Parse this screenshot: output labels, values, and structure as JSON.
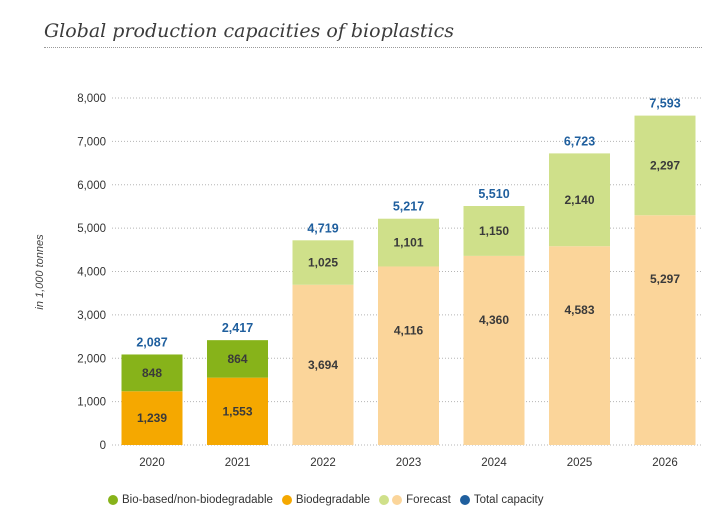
{
  "title": "Global production capacities of bioplastics",
  "chart_data": {
    "type": "bar",
    "stacked": true,
    "categories": [
      "2020",
      "2021",
      "2022",
      "2023",
      "2024",
      "2025",
      "2026"
    ],
    "series": [
      {
        "name": "Biodegradable",
        "values": [
          1239,
          1553,
          null,
          null,
          null,
          null,
          null
        ],
        "color": "#f5a800"
      },
      {
        "name": "Bio-based/non-biodegradable",
        "values": [
          848,
          864,
          null,
          null,
          null,
          null,
          null
        ],
        "color": "#87b31a"
      },
      {
        "name": "Forecast (biodegradable)",
        "values": [
          null,
          null,
          3694,
          4116,
          4360,
          4583,
          5297
        ],
        "color": "#fbd59a"
      },
      {
        "name": "Forecast (bio-based/non-biodegradable)",
        "values": [
          null,
          null,
          1025,
          1101,
          1150,
          2140,
          2297
        ],
        "color": "#cfe08a"
      }
    ],
    "value_labels": {
      "bottom": [
        "1,239",
        "1,553",
        "3,694",
        "4,116",
        "4,360",
        "4,583",
        "5,297"
      ],
      "top": [
        "848",
        "864",
        "1,025",
        "1,101",
        "1,150",
        "2,140",
        "2,297"
      ]
    },
    "totals": [
      2087,
      2417,
      4719,
      5217,
      5510,
      6723,
      7593
    ],
    "total_labels": [
      "2,087",
      "2,417",
      "4,719",
      "5,217",
      "5,510",
      "6,723",
      "7,593"
    ],
    "ylabel": "in 1,000 tonnes",
    "ylim": [
      0,
      8000
    ],
    "yticks": [
      0,
      1000,
      2000,
      3000,
      4000,
      5000,
      6000,
      7000,
      8000
    ],
    "ytick_labels": [
      "0",
      "1,000",
      "2,000",
      "3,000",
      "4,000",
      "5,000",
      "6,000",
      "7,000",
      "8,000"
    ],
    "grid": true,
    "total_color": "#1f5f9e",
    "legend": [
      {
        "label": "Bio-based/non-biodegradable",
        "color": "#87b31a"
      },
      {
        "label": "Biodegradable",
        "color": "#f5a800"
      },
      {
        "label": "Forecast",
        "color": "#cfe08a"
      },
      {
        "label": "Forecast",
        "color": "#fbd59a"
      },
      {
        "label": "Total capacity",
        "color": "#1f5f9e"
      }
    ]
  }
}
